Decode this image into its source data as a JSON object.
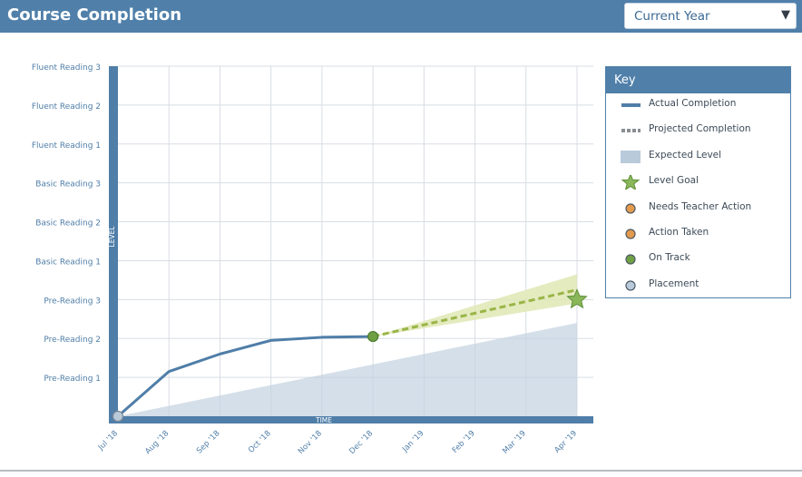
{
  "header": {
    "title": "Course Completion",
    "year_select": {
      "value": "Current Year",
      "caret": "▼"
    }
  },
  "chart_data": {
    "type": "line",
    "title": "",
    "xlabel": "TIME",
    "ylabel": "LEVEL",
    "x": [
      "Jul '18",
      "Aug '18",
      "Sep '18",
      "Oct '18",
      "Nov '18",
      "Dec '18",
      "Jan '19",
      "Feb '19",
      "Mar '19",
      "Apr '19"
    ],
    "y_levels": [
      "Pre-Reading 1",
      "Pre-Reading 2",
      "Pre-Reading 3",
      "Basic Reading 1",
      "Basic Reading 2",
      "Basic Reading 3",
      "Fluent Reading 1",
      "Fluent Reading 2",
      "Fluent Reading 3"
    ],
    "ylim": [
      0,
      9
    ],
    "grid": true,
    "legend_position": "right",
    "series": [
      {
        "name": "Actual Completion",
        "style": "solid",
        "color": "#4f7ea8",
        "points": [
          [
            0,
            0
          ],
          [
            1,
            1.15
          ],
          [
            2,
            1.6
          ],
          [
            3,
            1.95
          ],
          [
            4,
            2.03
          ],
          [
            5,
            2.05
          ]
        ]
      },
      {
        "name": "Projected Completion",
        "style": "dashed",
        "color": "#9ab548",
        "points": [
          [
            5,
            2.05
          ],
          [
            9,
            3.25
          ]
        ]
      },
      {
        "name": "Expected Level",
        "style": "area",
        "color": "#c2d2e0",
        "points": [
          [
            0,
            0
          ],
          [
            9,
            2.4
          ]
        ]
      }
    ],
    "projection_band": {
      "x": [
        5,
        9
      ],
      "low": [
        2.05,
        2.9
      ],
      "high": [
        2.05,
        3.65
      ],
      "color": "#dfe8b4"
    },
    "markers": [
      {
        "name": "Placement",
        "x": 0,
        "y": 0,
        "color": "#b9cadb"
      },
      {
        "name": "On Track",
        "x": 5,
        "y": 2.05,
        "color": "#6fa044"
      },
      {
        "name": "Level Goal",
        "x": 9,
        "y": 3.0,
        "color": "#8ab759"
      }
    ]
  },
  "key": {
    "title": "Key",
    "items": [
      {
        "label": "Actual Completion",
        "icon": "solid-line",
        "color": "#4f7ea8"
      },
      {
        "label": "Projected Completion",
        "icon": "dashed-line",
        "color": "#8a8e93"
      },
      {
        "label": "Expected Level",
        "icon": "area-swatch",
        "color": "#b9cadb"
      },
      {
        "label": "Level Goal",
        "icon": "star",
        "color": "#8ab759"
      },
      {
        "label": "Needs Teacher Action",
        "icon": "dot",
        "color": "#e39a4c"
      },
      {
        "label": "Action Taken",
        "icon": "dot",
        "color": "#e39a4c"
      },
      {
        "label": "On Track",
        "icon": "dot",
        "color": "#6fa044"
      },
      {
        "label": "Placement",
        "icon": "dot",
        "color": "#b9cadb"
      }
    ]
  }
}
